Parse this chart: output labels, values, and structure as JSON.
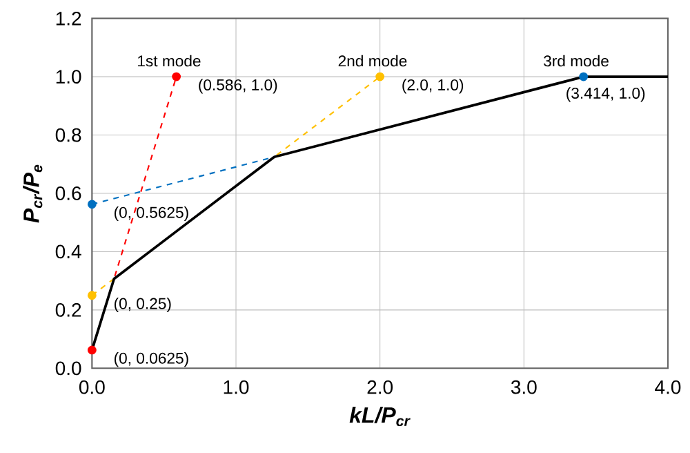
{
  "chart_data": {
    "type": "line",
    "xlabel": "kL/P$_{cr}$",
    "ylabel": "P$_{cr}$/P$_{e}$",
    "xlim": [
      0,
      4
    ],
    "ylim": [
      0,
      1.2
    ],
    "xticks": [
      {
        "value": 0,
        "label": "0.0"
      },
      {
        "value": 1,
        "label": "1.0"
      },
      {
        "value": 2,
        "label": "2.0"
      },
      {
        "value": 3,
        "label": "3.0"
      },
      {
        "value": 4,
        "label": "4.0"
      }
    ],
    "yticks": [
      {
        "value": 0,
        "label": "0.0"
      },
      0.2,
      0.4,
      0.6,
      0.8,
      {
        "value": 1,
        "label": "1.0"
      },
      1.2
    ],
    "grid": true,
    "series": [
      {
        "name": "1st mode",
        "color": "#ff0000",
        "x": [
          0,
          0.586
        ],
        "values": [
          0.0625,
          1.0
        ],
        "line_style": "dashed",
        "marker": "circle"
      },
      {
        "name": "2nd mode",
        "color": "#ffc000",
        "x": [
          0,
          2.0
        ],
        "values": [
          0.25,
          1.0
        ],
        "line_style": "dashed",
        "marker": "circle"
      },
      {
        "name": "3rd mode",
        "color": "#0070c0",
        "x": [
          0,
          3.414
        ],
        "values": [
          0.5625,
          1.0
        ],
        "line_style": "dashed",
        "marker": "circle"
      },
      {
        "color": "#000000",
        "x": [
          0,
          0.153,
          1.266,
          3.414,
          4.0
        ],
        "values": [
          0.0625,
          0.307,
          0.725,
          1.0,
          1.0
        ],
        "line_style": "solid",
        "marker": "none"
      }
    ],
    "annotations": [
      {
        "text": "(0, 0.0625)",
        "x": 0,
        "y": 0.0625
      },
      {
        "text": "(0, 0.25)",
        "x": 0,
        "y": 0.25
      },
      {
        "text": "(0, 0.5625)",
        "x": 0,
        "y": 0.5625
      },
      {
        "text": "(0.586, 1.0)",
        "x": 0.586,
        "y": 1.0
      },
      {
        "text": "(2.0, 1.0)",
        "x": 2.0,
        "y": 1.0
      },
      {
        "text": "(3.414, 1.0)",
        "x": 3.414,
        "y": 1.0
      }
    ]
  }
}
